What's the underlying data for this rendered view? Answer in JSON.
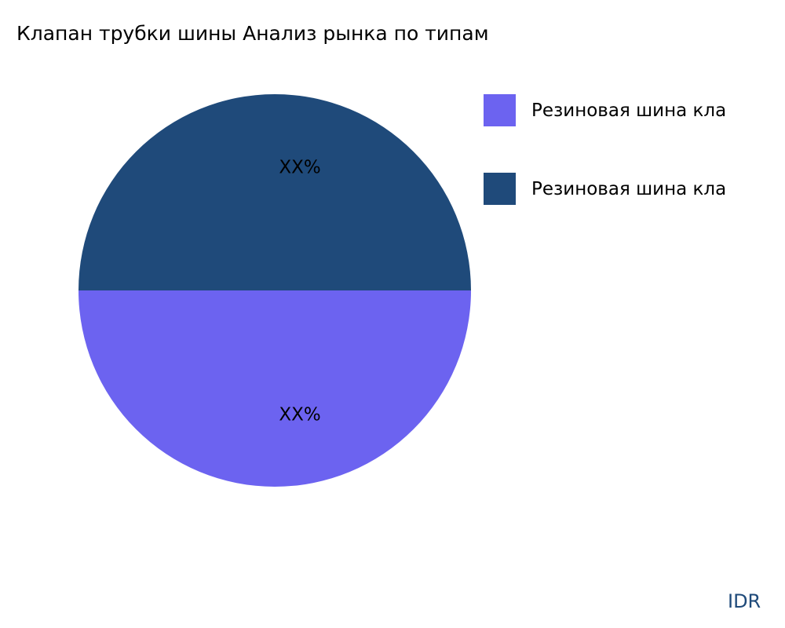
{
  "chart_data": {
    "type": "pie",
    "title": "Клапан трубки шины Анализ рынка по типам",
    "slices": [
      {
        "name": "Резиновая шина кла",
        "value": 50,
        "label": "XX%",
        "color": "#6c63f0"
      },
      {
        "name": "Резиновая шина кла",
        "value": 50,
        "label": "XX%",
        "color": "#1f4a7a"
      }
    ],
    "legend_placement": "top-right"
  },
  "brand": "IDR"
}
